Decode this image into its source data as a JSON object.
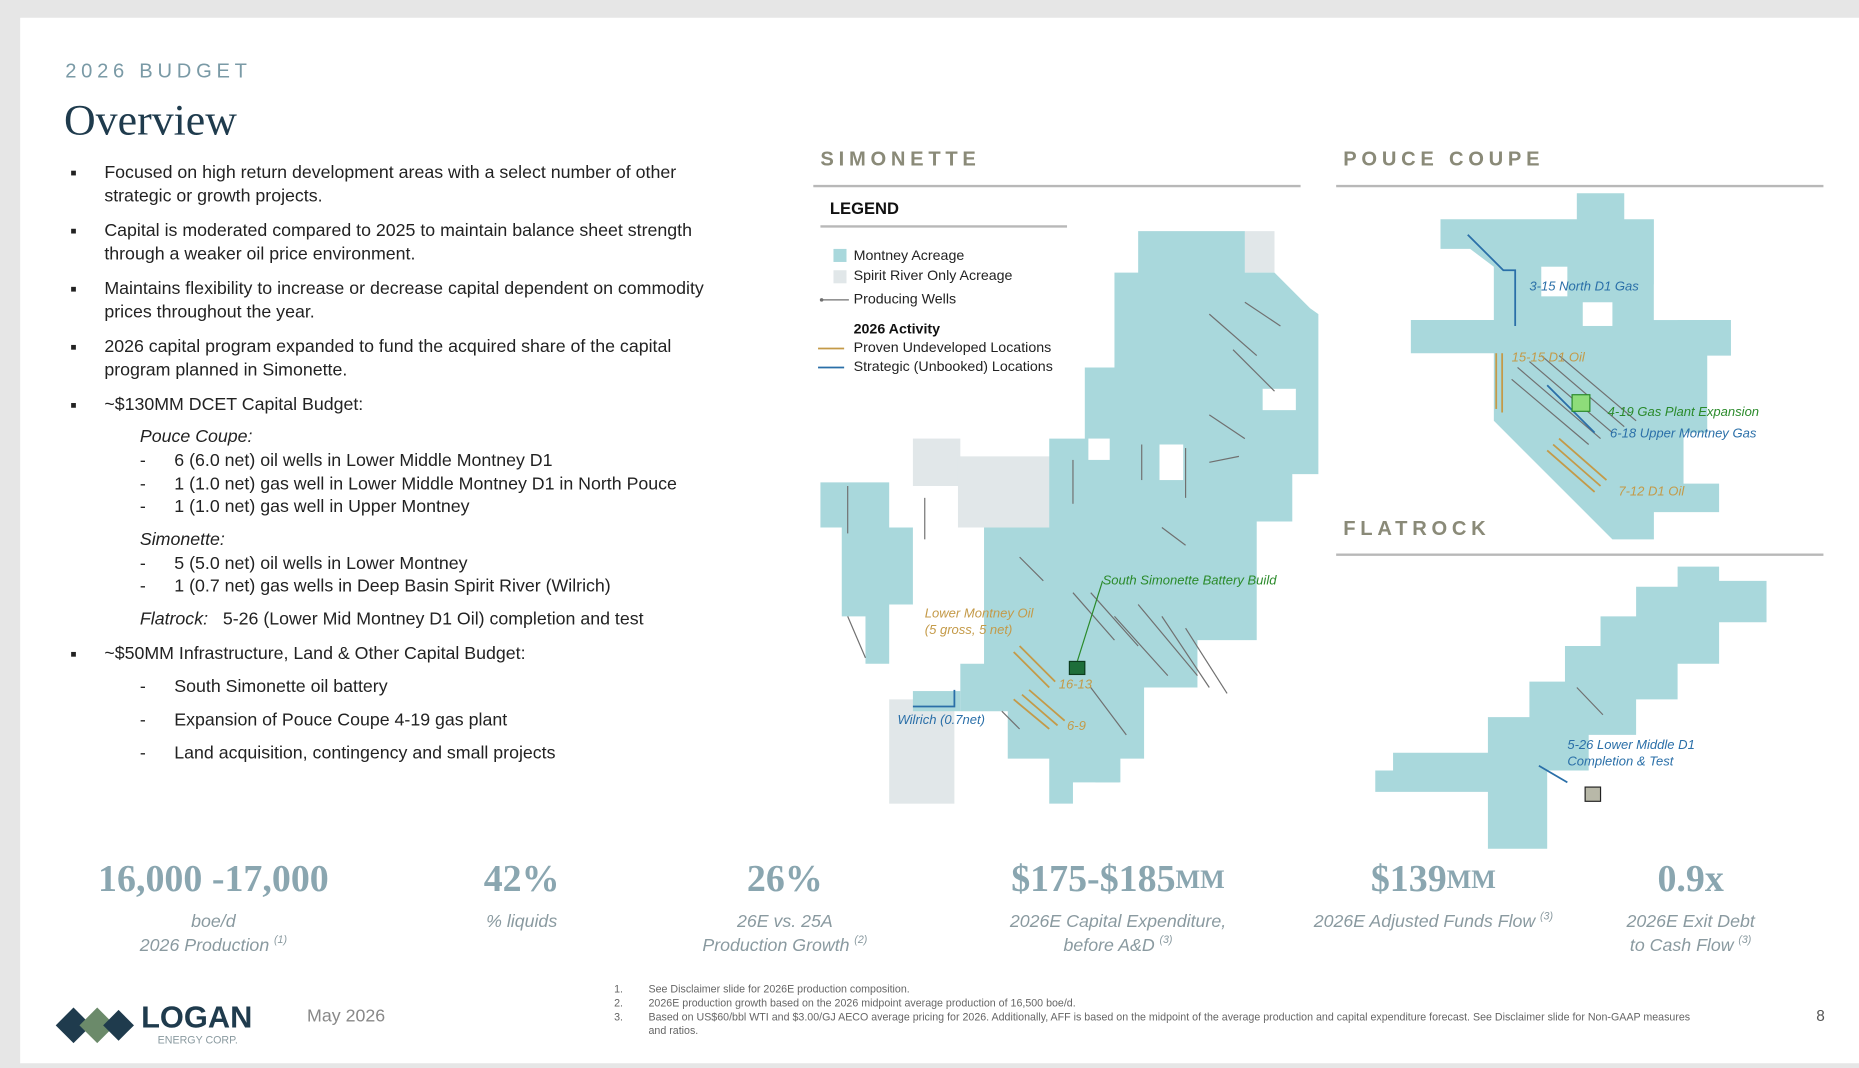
{
  "header": {
    "eyebrow": "2026 BUDGET",
    "title": "Overview"
  },
  "bullets": [
    {
      "lines": [
        "Focused on high return development areas with a select number of other",
        "strategic or growth projects."
      ]
    },
    {
      "lines": [
        "Capital is moderated compared to 2025 to maintain balance sheet strength",
        "through a weaker oil price environment."
      ]
    },
    {
      "lines": [
        "Maintains flexibility to increase or decrease capital dependent on commodity",
        "prices throughout the year."
      ]
    },
    {
      "lines": [
        "2026 capital program expanded to fund the acquired share of the capital",
        "program planned in Simonette."
      ]
    },
    {
      "lines": [
        "~$130MM DCET Capital Budget:"
      ],
      "groups": [
        {
          "heading": "Pouce Coupe:",
          "items": [
            "6 (6.0 net) oil wells in Lower Middle Montney D1",
            "1 (1.0 net) gas well in Lower Middle Montney D1 in North Pouce",
            "1 (1.0 net) gas well in Upper Montney"
          ]
        },
        {
          "heading": "Simonette:",
          "items": [
            "5 (5.0 net) oil wells in Lower Montney",
            "1 (0.7 net) gas wells in Deep Basin Spirit River (Wilrich)"
          ]
        },
        {
          "heading": "Flatrock:",
          "text": "5-26 (Lower Mid Montney D1 Oil) completion and test"
        }
      ]
    },
    {
      "lines": [
        "~$50MM Infrastructure, Land & Other Capital Budget:"
      ],
      "items": [
        "South Simonette oil battery",
        "Expansion of Pouce Coupe 4-19 gas plant",
        "Land acquisition, contingency and small projects"
      ]
    }
  ],
  "maps": {
    "simonette": {
      "title": "SIMONETTE",
      "legend": {
        "title": "LEGEND",
        "items": [
          "Montney Acreage",
          "Spirit River Only Acreage",
          "Producing Wells"
        ],
        "activity_title": "2026 Activity",
        "activity_items": [
          "Proven Undeveloped Locations",
          "Strategic (Unbooked) Locations"
        ]
      },
      "labels": [
        "South Simonette Battery Build",
        "Lower Montney Oil",
        "(5 gross, 5 net)",
        "16-13",
        "6-9",
        "Wilrich (0.7net)"
      ]
    },
    "pouce_coupe": {
      "title": "POUCE COUPE",
      "labels": [
        "3-15 North D1  Gas",
        "15-15 D1 Oil",
        "4-19 Gas Plant Expansion",
        "6-18 Upper Montney Gas",
        "7-12 D1 Oil"
      ]
    },
    "flatrock": {
      "title": "FLATROCK",
      "labels": [
        "5-26 Lower Middle D1",
        "Completion & Test"
      ]
    }
  },
  "metrics": [
    {
      "value": "16,000 -17,000",
      "label_lines": [
        "boe/d",
        "2026 Production"
      ],
      "note": "(1)"
    },
    {
      "value": "42%",
      "label_lines": [
        "% liquids"
      ]
    },
    {
      "value": "26%",
      "label_lines": [
        "26E vs. 25A",
        "Production Growth"
      ],
      "note": "(2)"
    },
    {
      "value": "$175-$185",
      "unit": "MM",
      "label_lines": [
        "2026E Capital Expenditure,",
        "before A&D"
      ],
      "note": "(3)"
    },
    {
      "value": "$139",
      "unit": "MM",
      "label_lines": [
        "2026E Adjusted Funds Flow"
      ],
      "note": "(3)"
    },
    {
      "value": "0.9x",
      "label_lines": [
        "2026E Exit Debt",
        "to Cash Flow"
      ],
      "note": "(3)"
    }
  ],
  "footer": {
    "logo": "LOGAN",
    "logo_sub": "ENERGY CORP.",
    "date": "May 2026",
    "footnotes": [
      {
        "num": "1.",
        "lines": [
          "See Disclaimer slide for 2026E production composition."
        ]
      },
      {
        "num": "2.",
        "lines": [
          "2026E production growth based on the 2026 midpoint average production of 16,500 boe/d."
        ]
      },
      {
        "num": "3.",
        "lines": [
          "Based on US$60/bbl WTI and $3.00/GJ AECO average pricing for 2026. Additionally, AFF is based on the midpoint of the average production and capital expenditure forecast. See Disclaimer slide for Non-GAAP measures",
          "and ratios."
        ]
      }
    ],
    "page": "8"
  }
}
